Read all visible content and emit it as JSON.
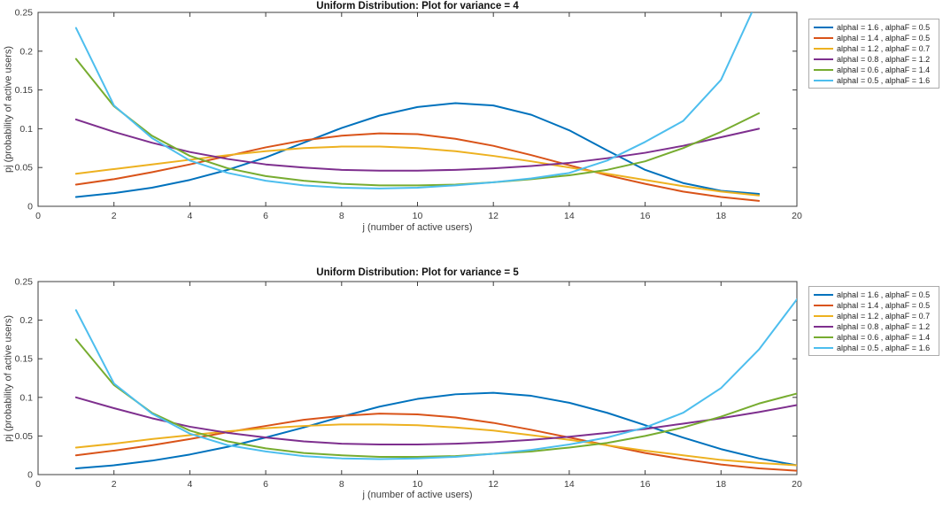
{
  "figure": {
    "background": "#ffffff",
    "axis_color": "#3c3c3c",
    "title_color": "#111111",
    "legend_border_color": "#ababab"
  },
  "chart_data": [
    {
      "type": "line",
      "title": "Uniform Distribution: Plot for variance = 4",
      "xlabel": "j (number of active users)",
      "ylabel": "pj (probability of active users)",
      "xlim": [
        0,
        20
      ],
      "ylim": [
        0,
        0.25
      ],
      "xticks": [
        0,
        2,
        4,
        6,
        8,
        10,
        12,
        14,
        16,
        18,
        20
      ],
      "xtick_labels": [
        "0",
        "2",
        "4",
        "6",
        "8",
        "10",
        "12",
        "14",
        "16",
        "18",
        "20"
      ],
      "yticks": [
        0,
        0.05,
        0.1,
        0.15,
        0.2,
        0.25
      ],
      "ytick_labels": [
        "0",
        "0.05",
        "0.1",
        "0.15",
        "0.2",
        "0.25"
      ],
      "grid": false,
      "legend_position": "outside-top-right",
      "x": [
        1,
        2,
        3,
        4,
        5,
        6,
        7,
        8,
        9,
        10,
        11,
        12,
        13,
        14,
        15,
        16,
        17,
        18,
        19
      ],
      "series": [
        {
          "label": "alphaI = 1.6 , alphaF = 0.5",
          "color": "#0072BD",
          "values": [
            0.012,
            0.017,
            0.024,
            0.034,
            0.047,
            0.063,
            0.082,
            0.101,
            0.117,
            0.128,
            0.133,
            0.13,
            0.118,
            0.098,
            0.072,
            0.047,
            0.03,
            0.02,
            0.016
          ]
        },
        {
          "label": "alphaI = 1.4 , alphaF = 0.5",
          "color": "#D95319",
          "values": [
            0.028,
            0.035,
            0.044,
            0.054,
            0.065,
            0.076,
            0.085,
            0.091,
            0.094,
            0.093,
            0.087,
            0.078,
            0.066,
            0.053,
            0.04,
            0.029,
            0.019,
            0.012,
            0.007
          ]
        },
        {
          "label": "alphaI = 1.2 , alphaF = 0.7",
          "color": "#EDB120",
          "values": [
            0.042,
            0.048,
            0.054,
            0.06,
            0.066,
            0.071,
            0.075,
            0.077,
            0.077,
            0.075,
            0.071,
            0.065,
            0.058,
            0.05,
            0.042,
            0.034,
            0.026,
            0.019,
            0.014
          ]
        },
        {
          "label": "alphaI = 0.8 , alphaF = 1.2",
          "color": "#7E2F8E",
          "values": [
            0.112,
            0.096,
            0.082,
            0.07,
            0.061,
            0.054,
            0.05,
            0.047,
            0.046,
            0.046,
            0.047,
            0.049,
            0.052,
            0.056,
            0.062,
            0.069,
            0.078,
            0.089,
            0.1
          ]
        },
        {
          "label": "alphaI = 0.6 , alphaF = 1.4",
          "color": "#77AC30",
          "values": [
            0.19,
            0.129,
            0.091,
            0.065,
            0.049,
            0.039,
            0.033,
            0.029,
            0.027,
            0.027,
            0.028,
            0.031,
            0.035,
            0.04,
            0.047,
            0.058,
            0.075,
            0.096,
            0.12
          ]
        },
        {
          "label": "alphaI = 0.5 , alphaF = 1.6",
          "color": "#4DBEEE",
          "values": [
            0.23,
            0.13,
            0.088,
            0.059,
            0.043,
            0.033,
            0.027,
            0.024,
            0.023,
            0.024,
            0.027,
            0.031,
            0.036,
            0.043,
            0.059,
            0.083,
            0.11,
            0.163,
            0.27
          ]
        }
      ]
    },
    {
      "type": "line",
      "title": "Uniform Distribution: Plot for variance = 5",
      "xlabel": "j (number of active users)",
      "ylabel": "pj (probability of active users)",
      "xlim": [
        0,
        20
      ],
      "ylim": [
        0,
        0.25
      ],
      "xticks": [
        0,
        2,
        4,
        6,
        8,
        10,
        12,
        14,
        16,
        18,
        20
      ],
      "xtick_labels": [
        "0",
        "2",
        "4",
        "6",
        "8",
        "10",
        "12",
        "14",
        "16",
        "18",
        "20"
      ],
      "yticks": [
        0,
        0.05,
        0.1,
        0.15,
        0.2,
        0.25
      ],
      "ytick_labels": [
        "0",
        "0.05",
        "0.1",
        "0.15",
        "0.2",
        "0.25"
      ],
      "grid": false,
      "legend_position": "outside-top-right",
      "x": [
        1,
        2,
        3,
        4,
        5,
        6,
        7,
        8,
        9,
        10,
        11,
        12,
        13,
        14,
        15,
        16,
        17,
        18,
        19,
        20
      ],
      "series": [
        {
          "label": "alphaI = 1.6 , alphaF = 0.5",
          "color": "#0072BD",
          "values": [
            0.008,
            0.012,
            0.018,
            0.026,
            0.036,
            0.048,
            0.061,
            0.075,
            0.088,
            0.098,
            0.104,
            0.106,
            0.102,
            0.093,
            0.08,
            0.064,
            0.048,
            0.033,
            0.021,
            0.012
          ]
        },
        {
          "label": "alphaI = 1.4 , alphaF = 0.5",
          "color": "#D95319",
          "values": [
            0.025,
            0.031,
            0.038,
            0.046,
            0.055,
            0.063,
            0.071,
            0.076,
            0.079,
            0.078,
            0.074,
            0.067,
            0.058,
            0.048,
            0.038,
            0.028,
            0.02,
            0.013,
            0.008,
            0.005
          ]
        },
        {
          "label": "alphaI = 1.2 , alphaF = 0.7",
          "color": "#EDB120",
          "values": [
            0.035,
            0.04,
            0.046,
            0.051,
            0.056,
            0.06,
            0.063,
            0.065,
            0.065,
            0.064,
            0.061,
            0.057,
            0.051,
            0.045,
            0.038,
            0.031,
            0.025,
            0.019,
            0.015,
            0.012
          ]
        },
        {
          "label": "alphaI = 0.8 , alphaF = 1.2",
          "color": "#7E2F8E",
          "values": [
            0.1,
            0.086,
            0.073,
            0.062,
            0.054,
            0.048,
            0.043,
            0.04,
            0.039,
            0.039,
            0.04,
            0.042,
            0.045,
            0.049,
            0.054,
            0.059,
            0.066,
            0.073,
            0.081,
            0.09
          ]
        },
        {
          "label": "alphaI = 0.6 , alphaF = 1.4",
          "color": "#77AC30",
          "values": [
            0.175,
            0.116,
            0.08,
            0.057,
            0.043,
            0.034,
            0.028,
            0.025,
            0.023,
            0.023,
            0.024,
            0.027,
            0.03,
            0.035,
            0.041,
            0.05,
            0.061,
            0.075,
            0.092,
            0.105
          ]
        },
        {
          "label": "alphaI = 0.5 , alphaF = 1.6",
          "color": "#4DBEEE",
          "values": [
            0.213,
            0.118,
            0.079,
            0.053,
            0.038,
            0.03,
            0.024,
            0.021,
            0.02,
            0.021,
            0.023,
            0.027,
            0.032,
            0.039,
            0.048,
            0.061,
            0.08,
            0.112,
            0.162,
            0.227
          ]
        }
      ]
    }
  ]
}
